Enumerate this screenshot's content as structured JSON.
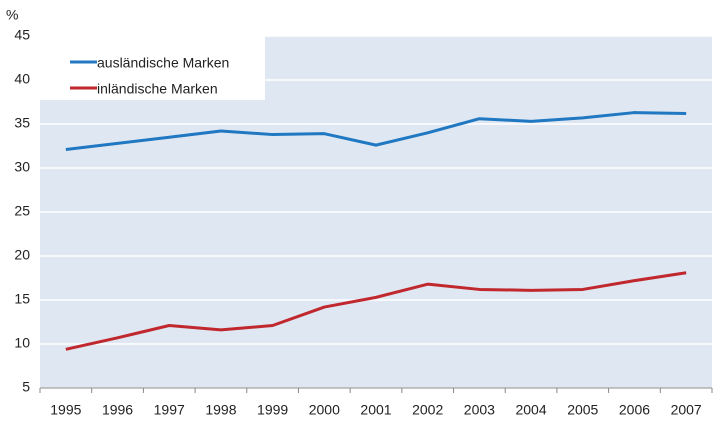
{
  "chart_data": {
    "type": "line",
    "y_label": "%",
    "categories": [
      "1995",
      "1996",
      "1997",
      "1998",
      "1999",
      "2000",
      "2001",
      "2002",
      "2003",
      "2004",
      "2005",
      "2006",
      "2007"
    ],
    "series": [
      {
        "name": "ausländische Marken",
        "color": "#1f78c1",
        "values": [
          32.1,
          32.8,
          33.5,
          34.2,
          33.8,
          33.9,
          32.6,
          34.0,
          35.6,
          35.3,
          35.7,
          36.3,
          36.2
        ]
      },
      {
        "name": "inländische Marken",
        "color": "#c0282d",
        "values": [
          9.4,
          10.7,
          12.1,
          11.6,
          12.1,
          14.2,
          15.3,
          16.8,
          16.2,
          16.1,
          16.2,
          17.2,
          18.1
        ]
      }
    ],
    "ylim": [
      5,
      45
    ],
    "yticks": [
      5,
      10,
      15,
      20,
      25,
      30,
      35,
      40,
      45
    ],
    "grid": true,
    "legend": "top-left"
  }
}
